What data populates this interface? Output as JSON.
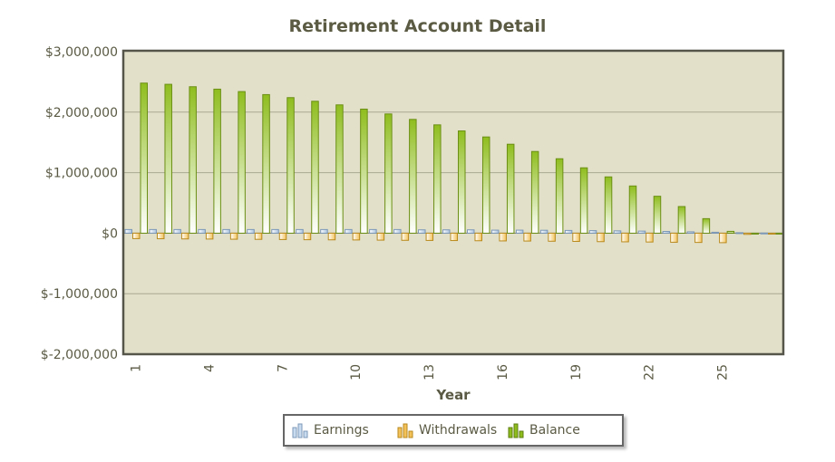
{
  "chart_data": {
    "type": "bar",
    "title": "Retirement Account Detail",
    "xlabel": "Year",
    "ylabel": "",
    "ylim": [
      -2000000,
      3000000
    ],
    "yticks": [
      3000000,
      2000000,
      1000000,
      0,
      -1000000,
      -2000000
    ],
    "ytick_labels": [
      "$3,000,000",
      "$2,000,000",
      "$1,000,000",
      "$0",
      "$-1,000,000",
      "$-2,000,000"
    ],
    "xtick_labels": [
      "1",
      "4",
      "7",
      "10",
      "13",
      "16",
      "19",
      "22",
      "25"
    ],
    "legend_position": "bottom",
    "grid": true,
    "categories": [
      1,
      2,
      3,
      4,
      5,
      6,
      7,
      8,
      9,
      10,
      11,
      12,
      13,
      14,
      15,
      16,
      17,
      18,
      19,
      20,
      21,
      22,
      23,
      24,
      25,
      26,
      27
    ],
    "series": [
      {
        "name": "Earnings",
        "color": "#a9c3df",
        "values": [
          60000,
          60000,
          60000,
          60000,
          60000,
          60000,
          60000,
          60000,
          60000,
          60000,
          60000,
          60000,
          55000,
          55000,
          55000,
          50000,
          50000,
          48000,
          45000,
          42000,
          38000,
          34000,
          28000,
          22000,
          15000,
          8000,
          3000
        ]
      },
      {
        "name": "Withdrawals",
        "color": "#f3c35a",
        "values": [
          -90000,
          -92000,
          -95000,
          -97000,
          -100000,
          -102000,
          -105000,
          -108000,
          -110000,
          -112000,
          -115000,
          -118000,
          -120000,
          -122000,
          -125000,
          -128000,
          -130000,
          -133000,
          -136000,
          -140000,
          -143000,
          -146000,
          -150000,
          -153000,
          -157000,
          -20000,
          -5000
        ]
      },
      {
        "name": "Balance",
        "color": "#8fbd1e",
        "values": [
          2480000,
          2460000,
          2420000,
          2380000,
          2340000,
          2290000,
          2240000,
          2180000,
          2120000,
          2050000,
          1970000,
          1880000,
          1790000,
          1690000,
          1590000,
          1470000,
          1350000,
          1230000,
          1080000,
          930000,
          780000,
          610000,
          440000,
          240000,
          30000,
          0,
          0
        ]
      }
    ]
  }
}
